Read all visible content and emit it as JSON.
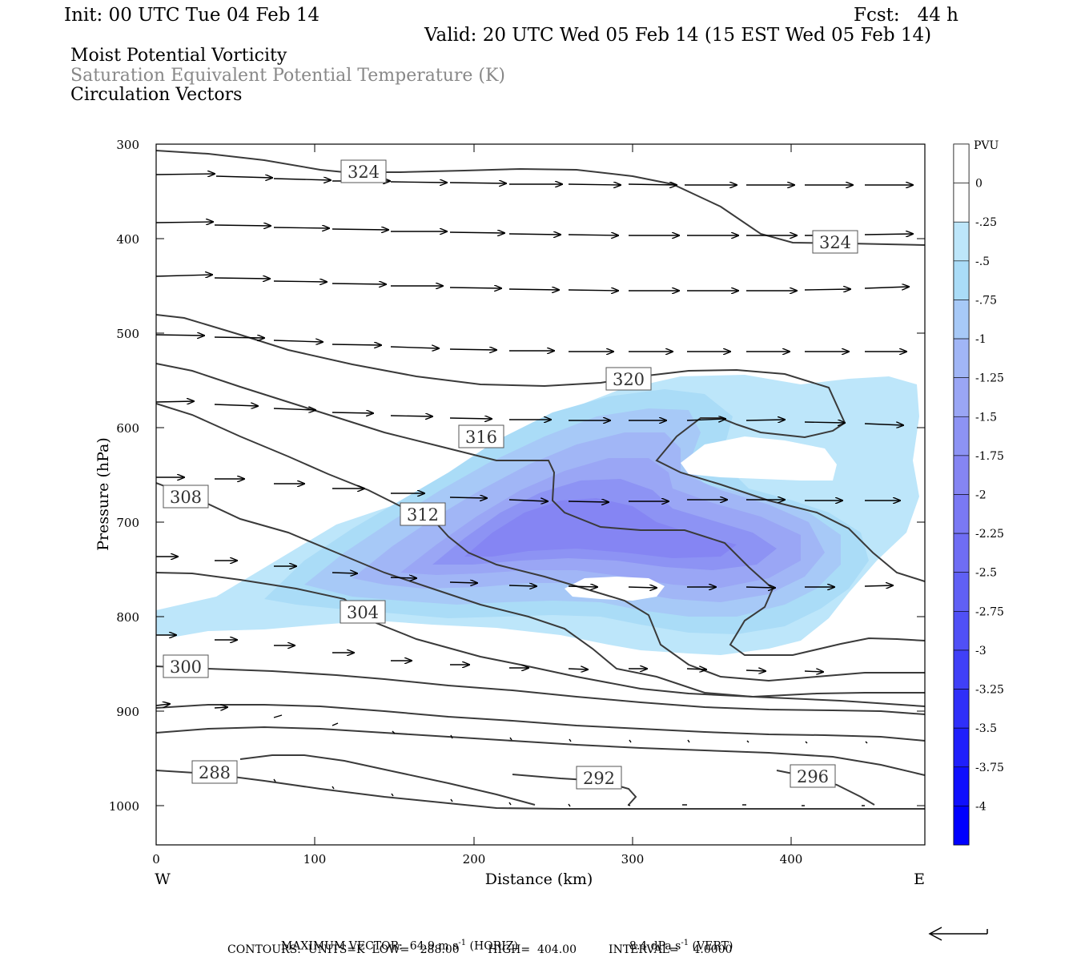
{
  "header": {
    "init": "Init: 00 UTC Tue 04 Feb 14",
    "fcst": "Fcst:   44 h",
    "valid": "Valid: 20 UTC Wed 05 Feb 14 (15 EST Wed 05 Feb 14)",
    "field1": "Moist Potential Vorticity",
    "field2": "Saturation Equivalent Potential Temperature (K)",
    "field3": "Circulation Vectors"
  },
  "footer": {
    "max_vector": "MAXIMUM VECTOR:  64.9 m s",
    "max_vector_unit_exp": "-1",
    "horiz": " (HORIZ)",
    "vert_value": "8.4 dPa s",
    "vert_unit_exp": "-1",
    "vert": " (VERT)",
    "contours": "CONTOURS:  UNITS=K  LOW=   288.00        HIGH=  404.00         INTERVAL=    4.0000"
  },
  "chart_data": {
    "type": "cross-section contour",
    "xlabel": "Distance (km)",
    "ylabel": "Pressure (hPa)",
    "x_ticks": [
      0,
      100,
      200,
      300,
      400
    ],
    "y_ticks": [
      300,
      400,
      500,
      600,
      700,
      800,
      900,
      1000
    ],
    "xlim": [
      0,
      485
    ],
    "ylim": [
      300,
      1040
    ],
    "y_inverted": true,
    "x_end_labels": {
      "left": "W",
      "right": "E"
    },
    "colorbar": {
      "unit": "PVU",
      "levels": [
        "0",
        "-.25",
        "-.5",
        "-.75",
        "-1",
        "-1.25",
        "-1.5",
        "-1.75",
        "-2",
        "-2.25",
        "-2.5",
        "-2.75",
        "-3",
        "-3.25",
        "-3.5",
        "-3.75",
        "-4"
      ],
      "colors": [
        "#ffffff",
        "#ffffff",
        "#bde6fa",
        "#aadcf7",
        "#a7c9f7",
        "#a1b6f6",
        "#9aa6f5",
        "#8d93f4",
        "#8585f3",
        "#7a79f4",
        "#6f6df4",
        "#6060f5",
        "#5050f6",
        "#4040f7",
        "#2f2ff9",
        "#1f1ffb",
        "#0f0ffd",
        "#0000ff"
      ]
    },
    "contour_labels": [
      {
        "value": "324",
        "x": 130,
        "p": 330
      },
      {
        "value": "324",
        "x": 429,
        "p": 403
      },
      {
        "value": "320",
        "x": 298,
        "p": 548
      },
      {
        "value": "316",
        "x": 205,
        "p": 608
      },
      {
        "value": "312",
        "x": 169,
        "p": 691
      },
      {
        "value": "308",
        "x": 18,
        "p": 675
      },
      {
        "value": "304",
        "x": 131,
        "p": 796
      },
      {
        "value": "300",
        "x": 18,
        "p": 852
      },
      {
        "value": "288",
        "x": 37,
        "p": 964
      },
      {
        "value": "292",
        "x": 280,
        "p": 967
      },
      {
        "value": "296",
        "x": 425,
        "p": 967
      }
    ],
    "pv_min_region_pvu": -2,
    "vector_reference": {
      "horizontal_m_s": 64.9,
      "vertical_dPa_s": 8.4
    }
  }
}
